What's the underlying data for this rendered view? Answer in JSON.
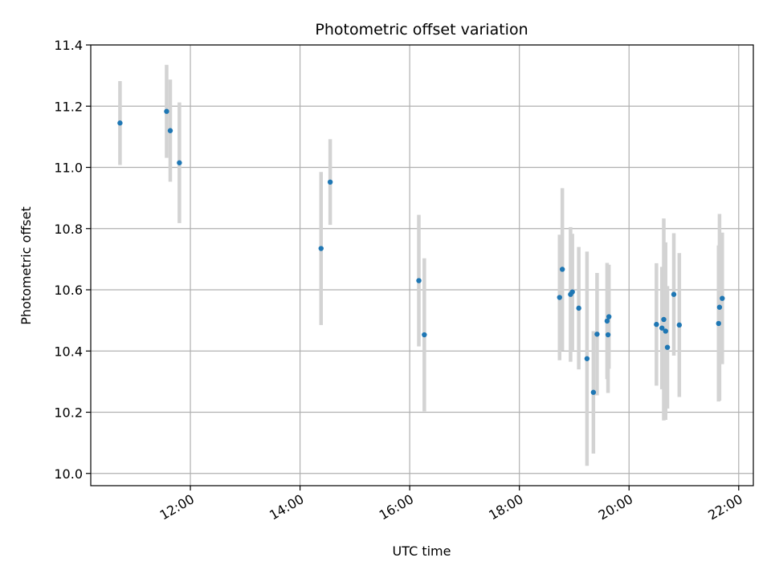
{
  "chart_data": {
    "type": "scatter",
    "title": "Photometric offset variation",
    "xlabel": "UTC time",
    "ylabel": "Photometric offset",
    "xlim": [
      "10:11",
      "22:16"
    ],
    "ylim": [
      9.96,
      11.4
    ],
    "x_ticks": [
      "12:00",
      "14:00",
      "16:00",
      "18:00",
      "20:00",
      "22:00"
    ],
    "y_ticks": [
      "10.0",
      "10.2",
      "10.4",
      "10.6",
      "10.8",
      "11.0",
      "11.2",
      "11.4"
    ],
    "grid": true,
    "legend": "none",
    "colors": {
      "marker": "#1f77b4",
      "errorbar": "#d3d3d3",
      "grid": "#b0b0b0"
    },
    "series": [
      {
        "points": [
          {
            "x": "10:43",
            "y": 11.145,
            "err": 0.137
          },
          {
            "x": "11:34",
            "y": 11.183,
            "err": 0.152
          },
          {
            "x": "11:38",
            "y": 11.12,
            "err": 0.167
          },
          {
            "x": "11:48",
            "y": 11.015,
            "err": 0.197
          },
          {
            "x": "14:23",
            "y": 10.735,
            "err": 0.25
          },
          {
            "x": "14:33",
            "y": 10.952,
            "err": 0.14
          },
          {
            "x": "16:10",
            "y": 10.63,
            "err": 0.215
          },
          {
            "x": "16:16",
            "y": 10.453,
            "err": 0.25
          },
          {
            "x": "18:44",
            "y": 10.575,
            "err": 0.205
          },
          {
            "x": "18:47",
            "y": 10.667,
            "err": 0.265
          },
          {
            "x": "18:56",
            "y": 10.585,
            "err": 0.22
          },
          {
            "x": "18:58",
            "y": 10.593,
            "err": 0.19
          },
          {
            "x": "19:05",
            "y": 10.54,
            "err": 0.2
          },
          {
            "x": "19:14",
            "y": 10.375,
            "err": 0.35
          },
          {
            "x": "19:21",
            "y": 10.265,
            "err": 0.2
          },
          {
            "x": "19:25",
            "y": 10.455,
            "err": 0.2
          },
          {
            "x": "19:36",
            "y": 10.498,
            "err": 0.19
          },
          {
            "x": "19:37",
            "y": 10.453,
            "err": 0.19
          },
          {
            "x": "19:38",
            "y": 10.512,
            "err": 0.17
          },
          {
            "x": "20:30",
            "y": 10.487,
            "err": 0.2
          },
          {
            "x": "20:36",
            "y": 10.475,
            "err": 0.2
          },
          {
            "x": "20:38",
            "y": 10.503,
            "err": 0.33
          },
          {
            "x": "20:40",
            "y": 10.465,
            "err": 0.29
          },
          {
            "x": "20:42",
            "y": 10.412,
            "err": 0.2
          },
          {
            "x": "20:49",
            "y": 10.585,
            "err": 0.2
          },
          {
            "x": "20:55",
            "y": 10.485,
            "err": 0.235
          },
          {
            "x": "21:38",
            "y": 10.49,
            "err": 0.255
          },
          {
            "x": "21:39",
            "y": 10.543,
            "err": 0.305
          },
          {
            "x": "21:42",
            "y": 10.572,
            "err": 0.215
          }
        ]
      }
    ]
  }
}
